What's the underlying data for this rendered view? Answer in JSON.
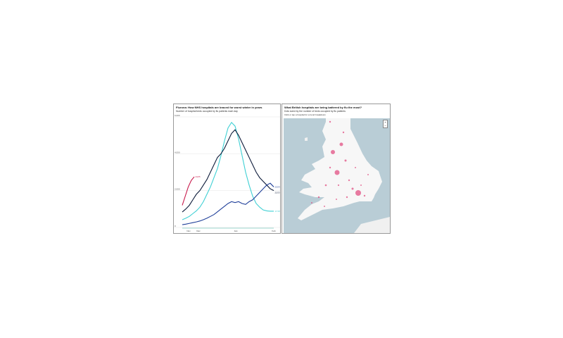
{
  "left": {
    "title": "Flurona: How NHS hospitals are braced for worst winter in years",
    "subtitle": "Number of hospital beds occupied by flu patients each day"
  },
  "right": {
    "title": "What British hospitals are being battered by flu the most?",
    "subtitle": "Dots sized by the number of beds occupied by flu patients",
    "hint": "Click or tap a hospital for a trend breakdown",
    "zoom_in": "+",
    "zoom_out": "−"
  },
  "chart_data": {
    "type": "line",
    "title": "Flurona: How NHS hospitals are braced for worst winter in years",
    "subtitle": "Number of hospital beds occupied by flu patients each day",
    "ylim": [
      0,
      6000
    ],
    "yticks": [
      "0",
      "2,000",
      "4,000",
      "6,000"
    ],
    "xticks": [
      {
        "label": "Nov",
        "x": 1.8
      },
      {
        "label": "Dec",
        "x": 4.6
      },
      {
        "label": "Jan",
        "x": 15.2
      },
      {
        "label": "Feb",
        "x": 26
      }
    ],
    "grid": true,
    "series": [
      {
        "name": "17/18",
        "color": "#3fd0d4",
        "values": [
          420,
          500,
          600,
          750,
          900,
          1100,
          1400,
          1800,
          2200,
          2700,
          3200,
          3900,
          4700,
          5400,
          5700,
          5500,
          4800,
          3900,
          3000,
          2300,
          1700,
          1300,
          1100,
          950,
          900,
          880,
          880
        ]
      },
      {
        "name": "22/23",
        "color": "#0d1b3a",
        "values": [
          840,
          1000,
          1200,
          1500,
          1800,
          2000,
          2300,
          2600,
          3000,
          3400,
          3800,
          4000,
          4300,
          4700,
          5100,
          5300,
          5000,
          4600,
          4200,
          3800,
          3400,
          3000,
          2700,
          2500,
          2300,
          2100,
          2000
        ]
      },
      {
        "name": "23/24",
        "color": "#1f3f99",
        "values": [
          150,
          180,
          220,
          260,
          300,
          350,
          420,
          500,
          600,
          700,
          850,
          1000,
          1150,
          1300,
          1400,
          1350,
          1400,
          1300,
          1250,
          1400,
          1500,
          1700,
          1900,
          2100,
          2300,
          2400,
          2200
        ]
      },
      {
        "name": "24/25",
        "color": "#c8194b",
        "values": [
          1200,
          1700,
          2200,
          2550,
          2750
        ]
      }
    ]
  },
  "colors": {
    "water": "#b9cdd6",
    "land": "#f7f7f7",
    "dot": "#e0457b"
  }
}
